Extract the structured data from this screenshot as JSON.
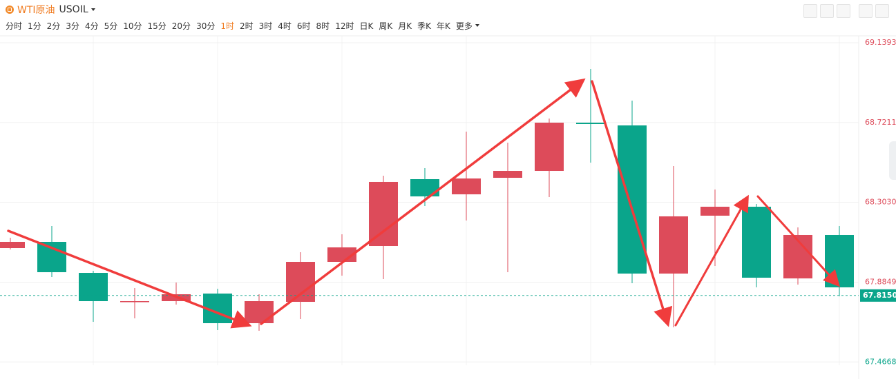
{
  "toolbar": {
    "name": "WTI原油",
    "code": "USOIL",
    "intervals": [
      "分时",
      "1分",
      "2分",
      "3分",
      "4分",
      "5分",
      "10分",
      "15分",
      "20分",
      "30分",
      "1时",
      "2时",
      "3时",
      "4时",
      "6时",
      "8时",
      "12时",
      "日K",
      "周K",
      "月K",
      "季K",
      "年K"
    ],
    "active": 10,
    "more": "更多"
  },
  "chart_data": {
    "type": "candlestick",
    "open": [
      68.0635,
      68.096,
      67.9335,
      67.7819,
      67.7855,
      67.8252,
      67.67,
      67.7819,
      67.9913,
      68.0743,
      68.4245,
      68.3451,
      68.4317,
      68.4678,
      68.7205,
      68.7061,
      67.9299,
      68.2332,
      68.2801,
      67.9046,
      68.1321
    ],
    "high": [
      68.1176,
      68.179,
      67.9444,
      67.8541,
      67.883,
      67.8505,
      67.8216,
      68.0418,
      68.1357,
      68.4425,
      68.4823,
      68.6736,
      68.6158,
      68.7422,
      69.0021,
      68.8361,
      68.4931,
      68.3703,
      68.2945,
      68.1718,
      68.179
    ],
    "low": [
      68.0563,
      67.9119,
      67.6772,
      67.6953,
      67.7675,
      67.6339,
      67.6303,
      67.6916,
      67.9191,
      67.901,
      68.2837,
      68.2079,
      67.9371,
      68.3306,
      68.5111,
      67.8794,
      67.6483,
      67.9696,
      67.8577,
      67.8722,
      67.8108
    ],
    "close": [
      68.096,
      67.9371,
      67.7855,
      67.7855,
      67.8216,
      67.67,
      67.7855,
      67.9913,
      68.0671,
      68.4101,
      68.3342,
      68.4281,
      68.4678,
      68.7205,
      68.7133,
      67.9299,
      68.2296,
      68.2801,
      67.9083,
      68.1321,
      67.8577
    ],
    "up_color": "#dd4b5a",
    "down_color": "#0aa58b",
    "last_price": {
      "value": 67.815,
      "label": "67.8150"
    },
    "ylim": [
      67.4498,
      69.1826
    ],
    "yticks": [
      69.1393,
      68.7211,
      {
        "value": 68.303,
        "label": "68.3030"
      },
      67.8849,
      67.4668
    ],
    "grid": true
  }
}
